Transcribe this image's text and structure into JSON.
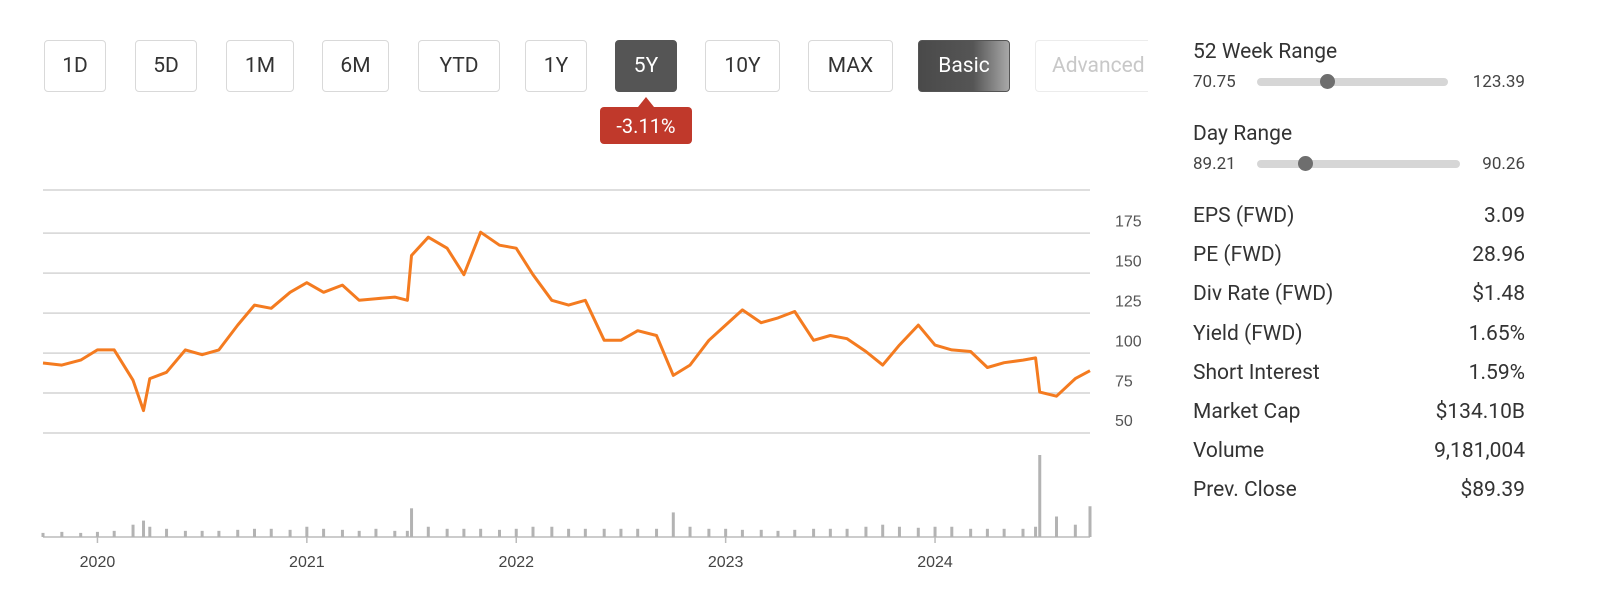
{
  "buttons": [
    "1D",
    "5D",
    "1M",
    "6M",
    "YTD",
    "1Y",
    "5Y",
    "10Y",
    "MAX",
    "Basic",
    "Advanced"
  ],
  "change_badge": "-3.11%",
  "ranges": [
    {
      "label": "52 Week Range",
      "low": "70.75",
      "high": "123.39"
    },
    {
      "label": "Day Range",
      "low": "89.21",
      "high": "90.26"
    }
  ],
  "stats": [
    [
      "EPS (FWD)",
      "3.09"
    ],
    [
      "PE (FWD)",
      "28.96"
    ],
    [
      "Div Rate (FWD)",
      "$1.48"
    ],
    [
      "Yield (FWD)",
      "1.65%"
    ],
    [
      "Short Interest",
      "1.59%"
    ],
    [
      "Market Cap",
      "$134.10B"
    ],
    [
      "Volume",
      "9,181,004"
    ],
    [
      "Prev. Close",
      "$89.39"
    ]
  ],
  "chart_data": {
    "type": "line",
    "color": "#f47b20",
    "volume_color": "#b3b3b3",
    "x": [
      2019.74,
      2019.83,
      2019.92,
      2020.0,
      2020.08,
      2020.17,
      2020.22,
      2020.25,
      2020.33,
      2020.42,
      2020.5,
      2020.58,
      2020.67,
      2020.75,
      2020.83,
      2020.92,
      2021.0,
      2021.08,
      2021.17,
      2021.25,
      2021.33,
      2021.42,
      2021.48,
      2021.5,
      2021.58,
      2021.67,
      2021.75,
      2021.83,
      2021.92,
      2022.0,
      2022.08,
      2022.17,
      2022.25,
      2022.33,
      2022.42,
      2022.5,
      2022.58,
      2022.67,
      2022.75,
      2022.83,
      2022.92,
      2023.0,
      2023.08,
      2023.17,
      2023.25,
      2023.33,
      2023.42,
      2023.5,
      2023.58,
      2023.67,
      2023.75,
      2023.83,
      2023.92,
      2024.0,
      2024.08,
      2024.17,
      2024.25,
      2024.33,
      2024.42,
      2024.48,
      2024.5,
      2024.58,
      2024.67,
      2024.74
    ],
    "values": [
      93.8,
      92.5,
      95.6,
      102,
      102,
      83,
      64,
      84,
      88,
      102,
      99,
      102,
      117.5,
      130,
      128,
      138,
      144,
      138,
      142.5,
      133,
      134,
      135,
      133,
      161,
      172.5,
      165.6,
      149,
      175.6,
      167.5,
      165.6,
      149,
      133,
      130,
      133,
      108,
      108,
      114,
      111,
      86,
      92.5,
      108,
      117.5,
      127,
      119,
      122,
      126,
      108,
      111,
      109,
      101,
      92.5,
      105,
      117.5,
      105,
      102,
      101,
      91,
      94,
      95.6,
      97,
      75.6,
      73,
      84,
      89
    ],
    "volume": [
      2000000,
      2500000,
      2000000,
      2500000,
      3000000,
      6000000,
      8000000,
      5000000,
      4000000,
      3000000,
      3000000,
      3000000,
      3500000,
      4000000,
      4000000,
      3500000,
      5000000,
      4000000,
      3500000,
      3000000,
      4000000,
      3000000,
      3000000,
      14000000,
      5000000,
      4000000,
      4000000,
      4000000,
      3500000,
      4000000,
      5000000,
      5000000,
      4000000,
      4000000,
      4000000,
      4000000,
      4000000,
      4000000,
      12000000,
      5000000,
      4000000,
      4000000,
      3500000,
      3500000,
      3000000,
      3500000,
      4000000,
      4000000,
      4000000,
      5000000,
      6000000,
      5000000,
      4500000,
      5000000,
      5000000,
      4000000,
      4000000,
      4000000,
      4000000,
      5000000,
      40000000,
      10000000,
      6000000,
      15000000
    ],
    "vlim": [
      0,
      40000000
    ],
    "xlim": [
      2019.74,
      2024.74
    ],
    "xticks": [
      2020,
      2021,
      2022,
      2023,
      2024
    ],
    "ylim": [
      50,
      202
    ],
    "yticks": [
      50,
      75,
      100,
      125,
      150,
      175
    ],
    "grid": true
  }
}
